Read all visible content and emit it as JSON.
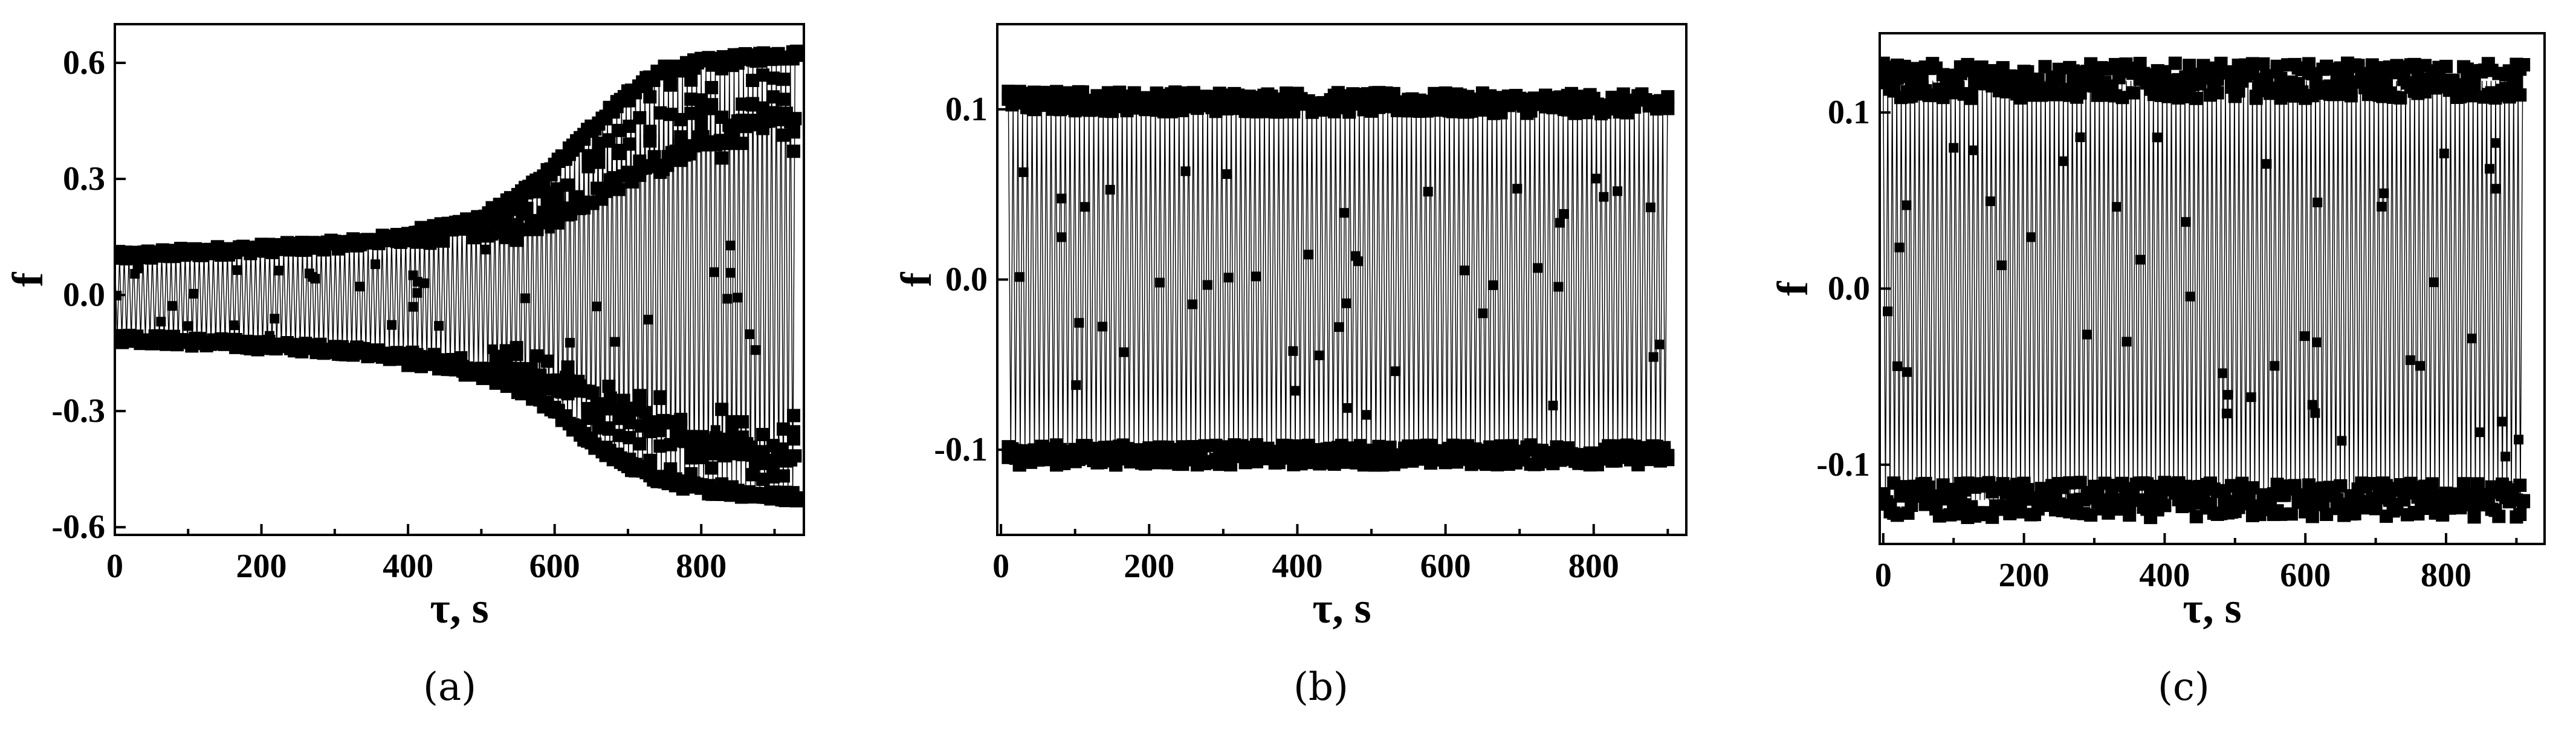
{
  "chart_data": [
    {
      "id": "a",
      "type": "scatter",
      "caption": "(a)",
      "xlabel": "τ, s",
      "ylabel": "f",
      "xlim": [
        0,
        940
      ],
      "ylim": [
        -0.62,
        0.7
      ],
      "xticks": [
        "0",
        "200",
        "400",
        "600",
        "800"
      ],
      "yticks": [
        "-0.6",
        "-0.3",
        "0.0",
        "0.3",
        "0.6"
      ],
      "envelope": {
        "x": [
          0,
          100,
          200,
          300,
          400,
          500,
          550,
          600,
          650,
          700,
          750,
          800,
          850,
          900,
          930
        ],
        "upper": [
          0.1,
          0.11,
          0.12,
          0.13,
          0.15,
          0.2,
          0.25,
          0.33,
          0.43,
          0.52,
          0.58,
          0.6,
          0.61,
          0.62,
          0.62
        ],
        "lower": [
          -0.11,
          -0.12,
          -0.13,
          -0.14,
          -0.16,
          -0.2,
          -0.24,
          -0.3,
          -0.38,
          -0.44,
          -0.48,
          -0.5,
          -0.51,
          -0.52,
          -0.52
        ]
      },
      "inner_band": {
        "x": [
          400,
          600,
          700,
          800,
          900,
          930
        ],
        "upper": [
          0.15,
          0.2,
          0.3,
          0.4,
          0.45,
          0.45
        ],
        "lower": [
          -0.16,
          -0.22,
          -0.3,
          -0.38,
          -0.42,
          -0.42
        ]
      }
    },
    {
      "id": "b",
      "type": "scatter",
      "caption": "(b)",
      "xlabel": "τ, s",
      "ylabel": "f",
      "xlim": [
        -5,
        925
      ],
      "ylim": [
        -0.15,
        0.15
      ],
      "xticks": [
        "0",
        "200",
        "400",
        "600",
        "800"
      ],
      "yticks": [
        "-0.1",
        "0.0",
        "0.1"
      ],
      "envelope": {
        "x": [
          10,
          900
        ],
        "upper": [
          0.105,
          0.103
        ],
        "lower": [
          -0.103,
          -0.103
        ]
      },
      "band_half_width": 0.006
    },
    {
      "id": "c",
      "type": "scatter",
      "caption": "(c)",
      "xlabel": "τ, s",
      "ylabel": "f",
      "xlim": [
        -5,
        940
      ],
      "ylim": [
        -0.145,
        0.145
      ],
      "xticks": [
        "0",
        "200",
        "400",
        "600",
        "800"
      ],
      "yticks": [
        "-0.1",
        "0.0",
        "0.1"
      ],
      "envelope": {
        "x": [
          0,
          910
        ],
        "upper": [
          0.118,
          0.118
        ],
        "lower": [
          -0.12,
          -0.12
        ]
      },
      "band_half_width": 0.01
    }
  ]
}
